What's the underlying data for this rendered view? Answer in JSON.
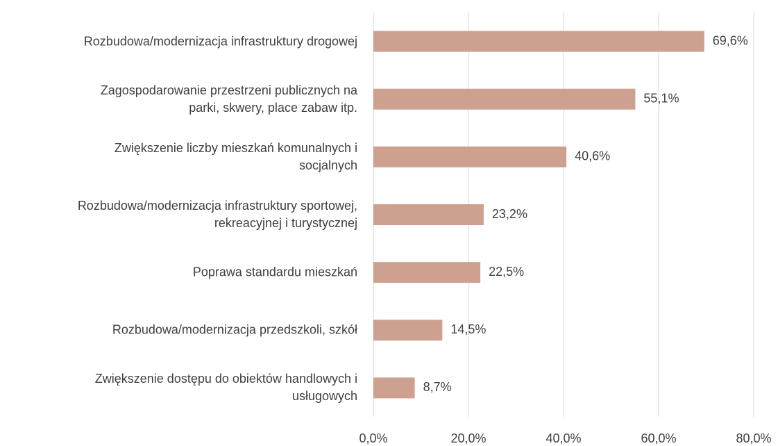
{
  "chart_data": {
    "type": "bar",
    "orientation": "horizontal",
    "categories": [
      "Rozbudowa/modernizacja infrastruktury drogowej",
      "Zagospodarowanie przestrzeni publicznych na\nparki, skwery, place zabaw itp.",
      "Zwiększenie liczby mieszkań komunalnych i\nsocjalnych",
      "Rozbudowa/modernizacja infrastruktury sportowej,\nrekreacyjnej i turystycznej",
      "Poprawa standardu mieszkań",
      "Rozbudowa/modernizacja przedszkoli, szkół",
      "Zwiększenie dostępu do obiektów handlowych i\nusługowych"
    ],
    "values": [
      69.6,
      55.1,
      40.6,
      23.2,
      22.5,
      14.5,
      8.7
    ],
    "value_labels": [
      "69,6%",
      "55,1%",
      "40,6%",
      "23,2%",
      "22,5%",
      "14,5%",
      "8,7%"
    ],
    "color": "#cda08f",
    "xlim": [
      0,
      80
    ],
    "xticks": [
      {
        "value": 0,
        "label": "0,0%"
      },
      {
        "value": 20,
        "label": "20,0%"
      },
      {
        "value": 40,
        "label": "40,0%"
      },
      {
        "value": 60,
        "label": "60,0%"
      },
      {
        "value": 80,
        "label": "80,0%"
      }
    ],
    "grid": true
  }
}
